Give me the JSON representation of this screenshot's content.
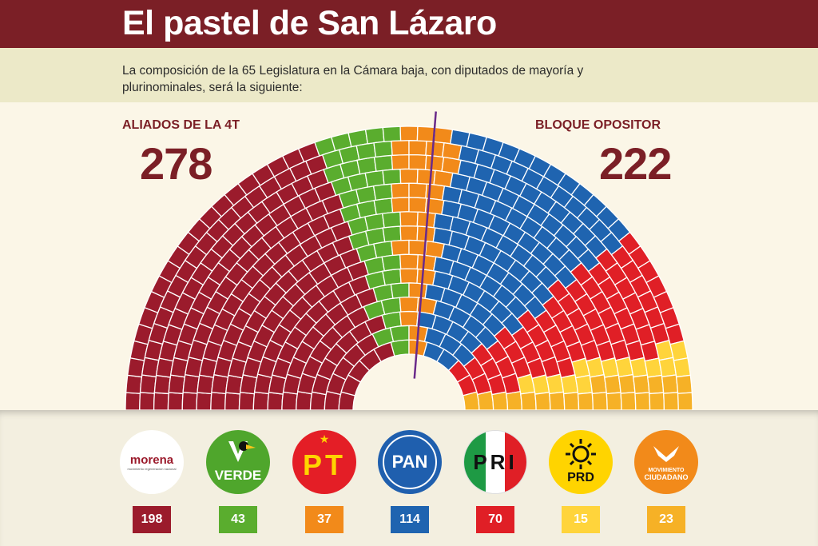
{
  "title": "El pastel de San Lázaro",
  "subtitle": "La composición de la 65 Legislatura en la Cámara baja, con diputados de mayoría y plurinominales, será la siguiente:",
  "left_block": {
    "label": "ALIADOS DE LA 4T",
    "total": "278"
  },
  "right_block": {
    "label": "BLOQUE  OPOSITOR",
    "total": "222"
  },
  "chart_data": {
    "type": "parliament",
    "total_seats": 500,
    "series": [
      {
        "name": "morena",
        "value": 198,
        "color": "#9b1b2c"
      },
      {
        "name": "VERDE",
        "value": 43,
        "color": "#5aad2e"
      },
      {
        "name": "PT",
        "value": 37,
        "color": "#f28a1a"
      },
      {
        "name": "PAN",
        "value": 114,
        "color": "#1f64b0"
      },
      {
        "name": "PRI",
        "value": 70,
        "color": "#e01f26"
      },
      {
        "name": "PRD",
        "value": 15,
        "color": "#ffd43b"
      },
      {
        "name": "MOVIMIENTO CIUDADANO",
        "value": 23,
        "color": "#f6b126"
      }
    ],
    "blocks": [
      {
        "name": "ALIADOS DE LA 4T",
        "value": 278
      },
      {
        "name": "BLOQUE  OPOSITOR",
        "value": 222
      }
    ],
    "divider_color": "#6a2a8a"
  },
  "parties": [
    {
      "id": "morena",
      "logo_text": "morena",
      "logo_subtext": "movimiento regeneración nacional",
      "count": "198",
      "color": "#9b1b2c",
      "logo_bg": "#ffffff",
      "logo_fg": "#9b1b2c"
    },
    {
      "id": "verde",
      "logo_text": "VERDE",
      "count": "43",
      "color": "#5aad2e",
      "logo_bg": "#4fa62c",
      "logo_fg": "#ffffff"
    },
    {
      "id": "pt",
      "logo_text": "PT",
      "count": "37",
      "color": "#f28a1a",
      "logo_bg": "#e41e26",
      "logo_fg": "#ffd400"
    },
    {
      "id": "pan",
      "logo_text": "PAN",
      "count": "114",
      "color": "#1f64b0",
      "logo_bg": "#1f5fae",
      "logo_fg": "#ffffff"
    },
    {
      "id": "pri",
      "logo_text": "PRI",
      "count": "70",
      "color": "#e01f26",
      "logo_bg": "#ffffff",
      "logo_fg": "#111111"
    },
    {
      "id": "prd",
      "logo_text": "PRD",
      "count": "15",
      "color": "#ffd43b",
      "logo_bg": "#ffd400",
      "logo_fg": "#111111"
    },
    {
      "id": "mc",
      "logo_text": "MOVIMIENTO",
      "logo_subtext": "CIUDADANO",
      "count": "23",
      "color": "#f6b126",
      "logo_bg": "#f28a1a",
      "logo_fg": "#ffffff"
    }
  ]
}
